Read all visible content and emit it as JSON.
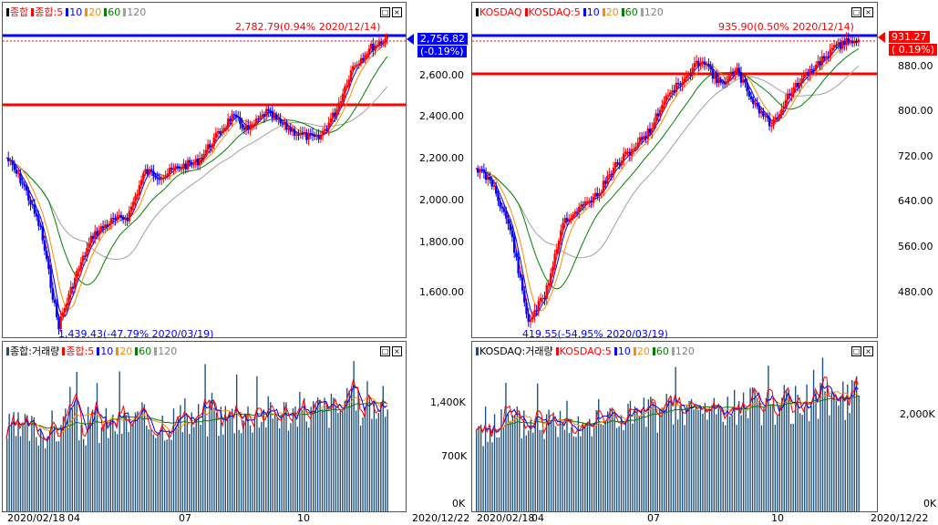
{
  "left": {
    "price": {
      "legend": [
        {
          "text": "종합",
          "color": "#ff0000",
          "mark": "#000000"
        },
        {
          "text": "종합:5",
          "color": "#ff0000",
          "mark": "#ff0000"
        },
        {
          "text": "10",
          "color": "#0000ff",
          "mark": "#0000ff"
        },
        {
          "text": "20",
          "color": "#ff8c00",
          "mark": "#ff8c00"
        },
        {
          "text": "60",
          "color": "#008000",
          "mark": "#008000"
        },
        {
          "text": "120",
          "color": "#808080",
          "mark": "#a0a0a0"
        }
      ],
      "y_labels": [
        "2,600.00",
        "2,400.00",
        "2,200.00",
        "2,000.00",
        "1,800.00",
        "1,600.00"
      ],
      "last_price": "2,756.82",
      "last_change": "(-0.19%)",
      "high_annotation": "2,782.79(0.94% 2020/12/14)",
      "low_annotation": "1,439.43(-47.79% 2020/03/19)"
    },
    "volume": {
      "legend": [
        {
          "text": "종합:거래량",
          "color": "#000000",
          "mark": "#1f4e79"
        },
        {
          "text": "종합:5",
          "color": "#ff0000",
          "mark": "#ff0000"
        },
        {
          "text": "10",
          "color": "#0000ff",
          "mark": "#0000ff"
        },
        {
          "text": "20",
          "color": "#ff8c00",
          "mark": "#ff8c00"
        },
        {
          "text": "60",
          "color": "#008000",
          "mark": "#008000"
        },
        {
          "text": "120",
          "color": "#808080",
          "mark": "#a0a0a0"
        }
      ],
      "y_labels": [
        "1,400K",
        "700K",
        "0K"
      ]
    },
    "x_labels": [
      "2020/02/18",
      "04",
      "07",
      "10"
    ],
    "x_end": "2020/12/22"
  },
  "right": {
    "price": {
      "legend": [
        {
          "text": "KOSDAQ",
          "color": "#ff0000",
          "mark": "#000000"
        },
        {
          "text": "KOSDAQ:5",
          "color": "#ff0000",
          "mark": "#ff0000"
        },
        {
          "text": "10",
          "color": "#0000ff",
          "mark": "#0000ff"
        },
        {
          "text": "20",
          "color": "#ff8c00",
          "mark": "#ff8c00"
        },
        {
          "text": "60",
          "color": "#008000",
          "mark": "#008000"
        },
        {
          "text": "120",
          "color": "#808080",
          "mark": "#a0a0a0"
        }
      ],
      "y_labels": [
        "880.00",
        "800.00",
        "720.00",
        "640.00",
        "560.00",
        "480.00"
      ],
      "last_price": "931.27",
      "last_change": "( 0.19%)",
      "high_annotation": "935.90(0.50% 2020/12/14)",
      "low_annotation": "419.55(-54.95% 2020/03/19)"
    },
    "volume": {
      "legend": [
        {
          "text": "KOSDAQ:거래량",
          "color": "#000000",
          "mark": "#1f4e79"
        },
        {
          "text": "KOSDAQ:5",
          "color": "#ff0000",
          "mark": "#ff0000"
        },
        {
          "text": "10",
          "color": "#0000ff",
          "mark": "#0000ff"
        },
        {
          "text": "20",
          "color": "#ff8c00",
          "mark": "#ff8c00"
        },
        {
          "text": "60",
          "color": "#008000",
          "mark": "#008000"
        },
        {
          "text": "120",
          "color": "#808080",
          "mark": "#a0a0a0"
        }
      ],
      "y_labels": [
        "2,000K",
        "0K"
      ]
    },
    "x_labels": [
      "2020/02/18",
      "04",
      "07",
      "10"
    ],
    "x_end": "2020/12/22"
  },
  "colors": {
    "up": "#ff0000",
    "down": "#0000ff",
    "volume": "#1f4e79",
    "hline_blue": "#0000ff",
    "hline_red": "#ff0000"
  }
}
